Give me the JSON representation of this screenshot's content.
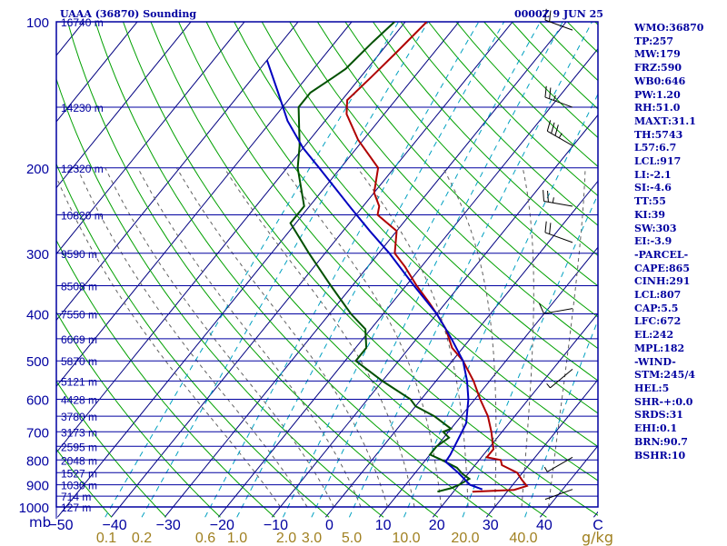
{
  "header": {
    "station": "UAAA (36870) Sounding",
    "timestamp": "0000Z  9 JUN 25"
  },
  "indices": [
    "WMO:36870",
    "TP:257",
    "MW:179",
    "FRZ:590",
    "WB0:646",
    "PW:1.20",
    "RH:51.0",
    "MAXT:31.1",
    "TH:5743",
    "L57:6.7",
    "LCL:917",
    "LI:-2.1",
    "SI:-4.6",
    "TT:55",
    "KI:39",
    "SW:303",
    "EI:-3.9",
    "-PARCEL-",
    "CAPE:865",
    "CINH:291",
    "LCL:807",
    "CAP:5.5",
    "LFC:672",
    "EL:242",
    "MPL:182",
    "-WIND-",
    "STM:245/4",
    "HEL:5",
    "SHR-+:0.0",
    "SRDS:31",
    "EHI:0.1",
    "BRN:90.7",
    "BSHR:10"
  ],
  "axis_labels": {
    "pressure_unit": "mb",
    "mixing_ratio_unit": "g/kg"
  },
  "colors": {
    "isobar": "#0000a0",
    "isotherm": "#000080",
    "dry_adiabat": "#00a000",
    "moist_adiabat": "#606060",
    "mixing_ratio": "#00a0c0",
    "temperature": "#b00000",
    "dewpoint": "#005000",
    "parcel": "#0000c0",
    "mixing_ratio_text": "#a08020"
  },
  "chart_data": {
    "type": "line",
    "title": "UAAA (36870) Sounding",
    "xlabel": "",
    "ylabel": "mb",
    "xlim": [
      -50,
      50
    ],
    "ylim": [
      1000,
      100
    ],
    "pressure_levels": [
      {
        "p": 100,
        "label": "100",
        "height": "16740 m"
      },
      {
        "p": 150,
        "label": "",
        "height": "14230 m"
      },
      {
        "p": 200,
        "label": "200",
        "height": "12320 m"
      },
      {
        "p": 250,
        "label": "",
        "height": "10820 m"
      },
      {
        "p": 300,
        "label": "300",
        "height": "9590 m"
      },
      {
        "p": 350,
        "label": "",
        "height": "8508 m"
      },
      {
        "p": 400,
        "label": "400",
        "height": "7550 m"
      },
      {
        "p": 450,
        "label": "",
        "height": "6669 m"
      },
      {
        "p": 500,
        "label": "500",
        "height": "5870 m"
      },
      {
        "p": 550,
        "label": "",
        "height": "5121 m"
      },
      {
        "p": 600,
        "label": "600",
        "height": "4428 m"
      },
      {
        "p": 650,
        "label": "",
        "height": "3780 m"
      },
      {
        "p": 700,
        "label": "700",
        "height": "3173 m"
      },
      {
        "p": 750,
        "label": "",
        "height": "2595 m"
      },
      {
        "p": 800,
        "label": "800",
        "height": "2048 m"
      },
      {
        "p": 850,
        "label": "",
        "height": "1527 m"
      },
      {
        "p": 900,
        "label": "900",
        "height": "1030 m"
      },
      {
        "p": 950,
        "label": "",
        "height": "714 m"
      },
      {
        "p": 1000,
        "label": "1000",
        "height": "127 m"
      }
    ],
    "temperature_ticks": [
      "−50",
      "−40",
      "−30",
      "−20",
      "−10",
      "0",
      "10",
      "20",
      "30",
      "40",
      "C"
    ],
    "mixing_ratio_ticks": [
      "0.1",
      "0.2",
      "0.6",
      "1.0",
      "2.0",
      "3.0",
      "5.0",
      "10.0",
      "20.0",
      "40.0"
    ],
    "series": [
      {
        "key": "temperature",
        "points": [
          [
            930,
            23.5
          ],
          [
            922,
            31
          ],
          [
            905,
            32.8
          ],
          [
            880,
            31
          ],
          [
            850,
            29
          ],
          [
            820,
            25
          ],
          [
            800,
            24
          ],
          [
            790,
            21
          ],
          [
            760,
            21
          ],
          [
            700,
            18
          ],
          [
            650,
            15
          ],
          [
            600,
            11
          ],
          [
            550,
            7
          ],
          [
            500,
            2
          ],
          [
            470,
            -2
          ],
          [
            430,
            -6
          ],
          [
            400,
            -10
          ],
          [
            380,
            -13
          ],
          [
            350,
            -18
          ],
          [
            320,
            -23
          ],
          [
            300,
            -27
          ],
          [
            270,
            -30
          ],
          [
            250,
            -36
          ],
          [
            240,
            -37
          ],
          [
            225,
            -40
          ],
          [
            200,
            -43
          ],
          [
            175,
            -51
          ],
          [
            155,
            -57
          ],
          [
            150,
            -58
          ],
          [
            145,
            -59
          ],
          [
            130,
            -58
          ],
          [
            115,
            -57
          ],
          [
            100,
            -56
          ]
        ]
      },
      {
        "key": "dewpoint",
        "points": [
          [
            930,
            17
          ],
          [
            915,
            19
          ],
          [
            900,
            20
          ],
          [
            875,
            21
          ],
          [
            855,
            19
          ],
          [
            830,
            17
          ],
          [
            800,
            13
          ],
          [
            780,
            10
          ],
          [
            750,
            10
          ],
          [
            720,
            11
          ],
          [
            700,
            9
          ],
          [
            690,
            10
          ],
          [
            650,
            5
          ],
          [
            620,
            0
          ],
          [
            600,
            -2
          ],
          [
            550,
            -10
          ],
          [
            500,
            -18
          ],
          [
            470,
            -18
          ],
          [
            430,
            -21
          ],
          [
            400,
            -26
          ],
          [
            350,
            -34
          ],
          [
            300,
            -43
          ],
          [
            260,
            -51
          ],
          [
            250,
            -51
          ],
          [
            240,
            -51
          ],
          [
            200,
            -58
          ],
          [
            180,
            -61
          ],
          [
            150,
            -67
          ],
          [
            140,
            -67
          ],
          [
            130,
            -65
          ],
          [
            125,
            -64
          ],
          [
            110,
            -63
          ],
          [
            100,
            -62
          ]
        ]
      },
      {
        "key": "parcel",
        "points": [
          [
            920,
            25
          ],
          [
            900,
            22
          ],
          [
            850,
            18
          ],
          [
            807,
            14
          ],
          [
            780,
            13.8
          ],
          [
            700,
            12.5
          ],
          [
            672,
            12
          ],
          [
            600,
            8.8
          ],
          [
            550,
            5.8
          ],
          [
            500,
            2
          ],
          [
            450,
            -3.5
          ],
          [
            400,
            -10
          ],
          [
            350,
            -18.5
          ],
          [
            300,
            -28
          ],
          [
            270,
            -35
          ],
          [
            242,
            -42
          ],
          [
            220,
            -48
          ],
          [
            200,
            -54
          ],
          [
            182,
            -60
          ],
          [
            160,
            -67
          ],
          [
            140,
            -73
          ],
          [
            120,
            -80
          ]
        ]
      }
    ],
    "wind_barbs": [
      {
        "p": 104,
        "dir": 290,
        "speed": 20
      },
      {
        "p": 150,
        "dir": 290,
        "speed": 25
      },
      {
        "p": 180,
        "dir": 300,
        "speed": 35
      },
      {
        "p": 240,
        "dir": 280,
        "speed": 25
      },
      {
        "p": 285,
        "dir": 290,
        "speed": 20
      },
      {
        "p": 390,
        "dir": 260,
        "speed": 10
      },
      {
        "p": 520,
        "dir": 230,
        "speed": 5
      },
      {
        "p": 790,
        "dir": 240,
        "speed": 5
      },
      {
        "p": 920,
        "dir": 250,
        "speed": 0
      }
    ]
  }
}
